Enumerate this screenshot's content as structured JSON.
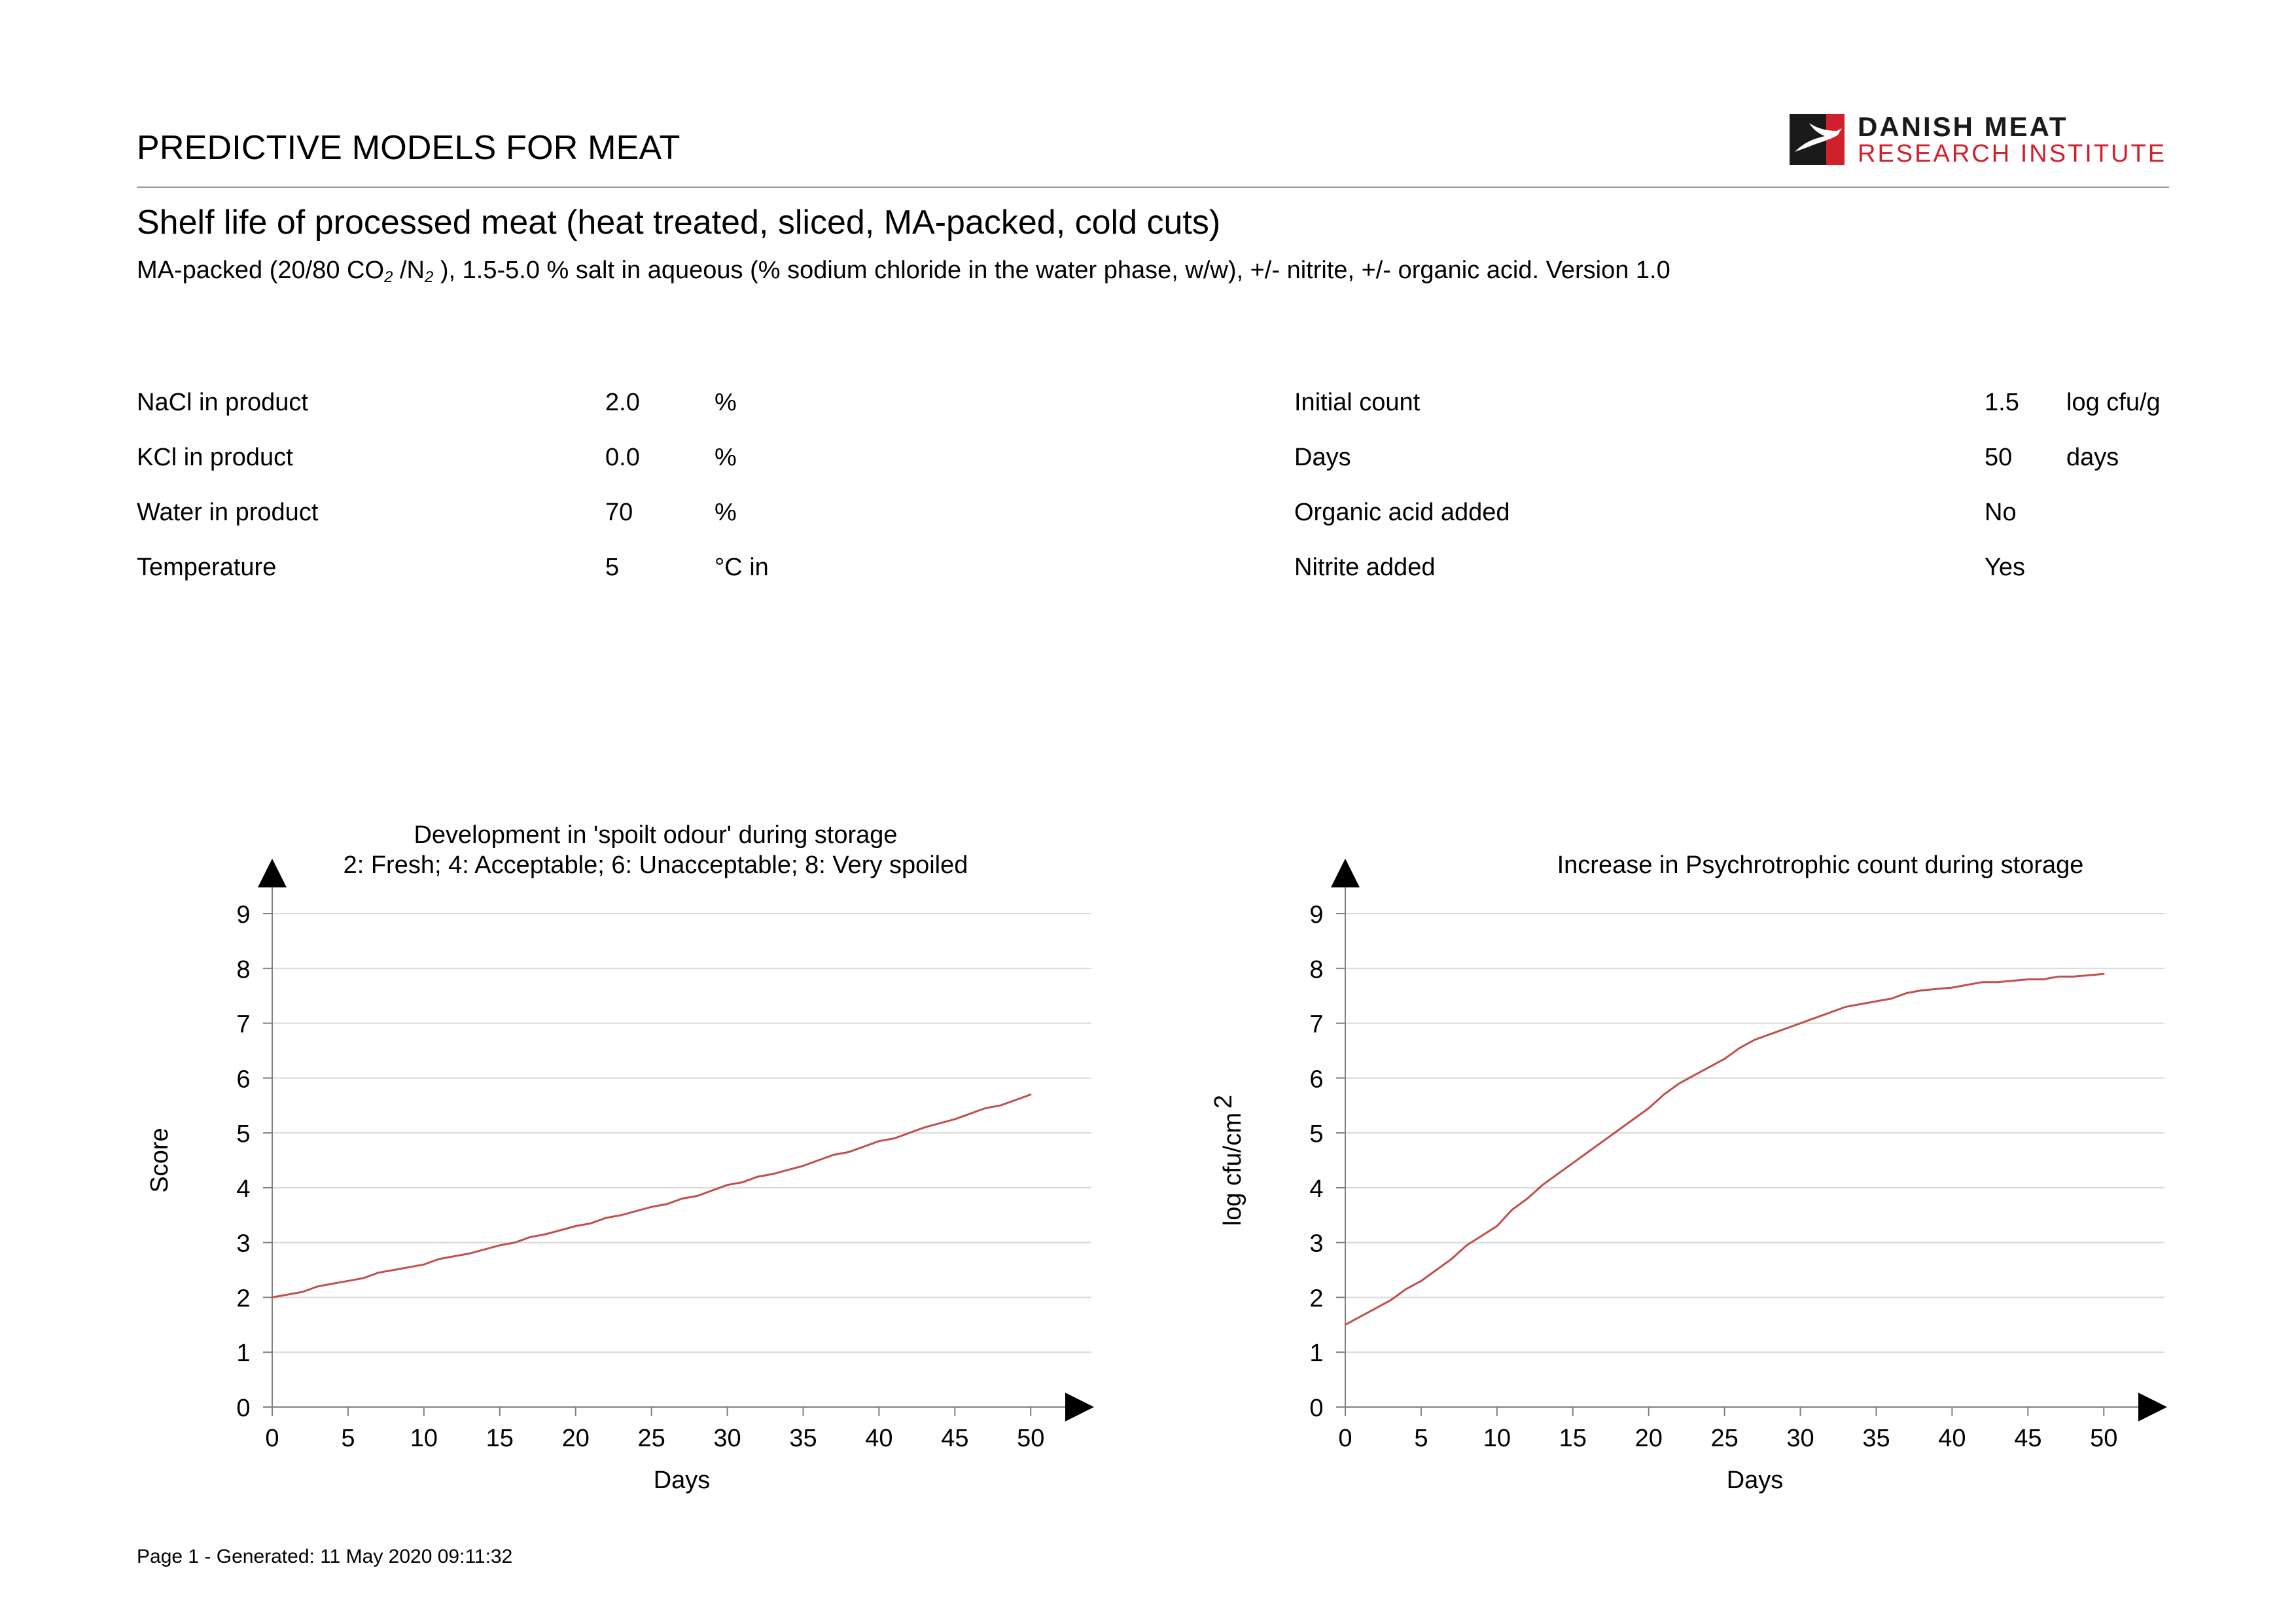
{
  "header": {
    "title": "PREDICTIVE MODELS FOR MEAT",
    "logo": {
      "line1": "DANISH MEAT",
      "line2": "RESEARCH INSTITUTE",
      "icon": "bird-flag-icon",
      "accent": "#d0202c"
    }
  },
  "subtitle": "Shelf life of processed meat (heat treated, sliced, MA-packed, cold cuts)",
  "description": {
    "part1": "MA-packed (20/80 CO",
    "sub1": "2",
    "part2": " /N",
    "sub2": "2",
    "part3": " ), 1.5-5.0 % salt in aqueous (% sodium chloride in the water phase, w/w), +/- nitrite, +/- organic acid. Version 1.0"
  },
  "parameters": {
    "left": [
      {
        "label": "NaCl in product",
        "value": "2.0",
        "unit": "%"
      },
      {
        "label": "KCl in product",
        "value": "0.0",
        "unit": "%"
      },
      {
        "label": "Water in product",
        "value": "70",
        "unit": "%"
      },
      {
        "label": "Temperature",
        "value": "5",
        "unit": "°C in"
      }
    ],
    "right": [
      {
        "label": "Initial count",
        "value": "1.5",
        "unit": "log cfu/g"
      },
      {
        "label": "Days",
        "value": "50",
        "unit": "days"
      },
      {
        "label": "Organic acid added",
        "value": "No",
        "unit": ""
      },
      {
        "label": "Nitrite added",
        "value": "Yes",
        "unit": ""
      }
    ]
  },
  "chart_data": [
    {
      "type": "line",
      "title": "Development in 'spoilt odour' during storage",
      "subtitle": "2: Fresh; 4: Acceptable; 6: Unacceptable; 8: Very spoiled",
      "xlabel": "Days",
      "ylabel": "Score",
      "xlim": [
        0,
        54
      ],
      "ylim": [
        0,
        9
      ],
      "xticks": [
        0,
        5,
        10,
        15,
        20,
        25,
        30,
        35,
        40,
        45,
        50
      ],
      "yticks": [
        0,
        1,
        2,
        3,
        4,
        5,
        6,
        7,
        8,
        9
      ],
      "grid": true,
      "line_color": "#c0504d",
      "series": [
        {
          "x": [
            0,
            2,
            3,
            5,
            6,
            7,
            8,
            10,
            11,
            12,
            13,
            15,
            16,
            17,
            18,
            20,
            21,
            22,
            23,
            25,
            26,
            27,
            28,
            30,
            31,
            32,
            33,
            35,
            36,
            37,
            38,
            40,
            41,
            42,
            43,
            45,
            46,
            47,
            48,
            50
          ],
          "y": [
            2.0,
            2.1,
            2.2,
            2.3,
            2.35,
            2.45,
            2.5,
            2.6,
            2.7,
            2.75,
            2.8,
            2.95,
            3.0,
            3.1,
            3.15,
            3.3,
            3.35,
            3.45,
            3.5,
            3.65,
            3.7,
            3.8,
            3.85,
            4.05,
            4.1,
            4.2,
            4.25,
            4.4,
            4.5,
            4.6,
            4.65,
            4.85,
            4.9,
            5.0,
            5.1,
            5.25,
            5.35,
            5.45,
            5.5,
            5.7
          ]
        }
      ]
    },
    {
      "type": "line",
      "title": "Increase in Psychrotrophic count during storage",
      "xlabel": "Days",
      "ylabel": "log cfu/cm",
      "ylabel_superscript": "2",
      "xlim": [
        0,
        54
      ],
      "ylim": [
        0,
        9
      ],
      "xticks": [
        0,
        5,
        10,
        15,
        20,
        25,
        30,
        35,
        40,
        45,
        50
      ],
      "yticks": [
        0,
        1,
        2,
        3,
        4,
        5,
        6,
        7,
        8,
        9
      ],
      "grid": true,
      "line_color": "#c0504d",
      "series": [
        {
          "x": [
            0,
            2,
            3,
            4,
            5,
            6,
            7,
            8,
            10,
            11,
            12,
            13,
            15,
            16,
            17,
            18,
            20,
            21,
            22,
            23,
            25,
            26,
            27,
            28,
            30,
            31,
            32,
            33,
            35,
            36,
            37,
            38,
            40,
            41,
            42,
            43,
            45,
            46,
            47,
            48,
            50
          ],
          "y": [
            1.5,
            1.8,
            1.95,
            2.15,
            2.3,
            2.5,
            2.7,
            2.95,
            3.3,
            3.6,
            3.8,
            4.05,
            4.45,
            4.65,
            4.85,
            5.05,
            5.45,
            5.7,
            5.9,
            6.05,
            6.35,
            6.55,
            6.7,
            6.8,
            7.0,
            7.1,
            7.2,
            7.3,
            7.4,
            7.45,
            7.55,
            7.6,
            7.65,
            7.7,
            7.75,
            7.75,
            7.8,
            7.8,
            7.85,
            7.85,
            7.9
          ]
        }
      ]
    }
  ],
  "footer": "Page 1 - Generated: 11 May 2020 09:11:32"
}
